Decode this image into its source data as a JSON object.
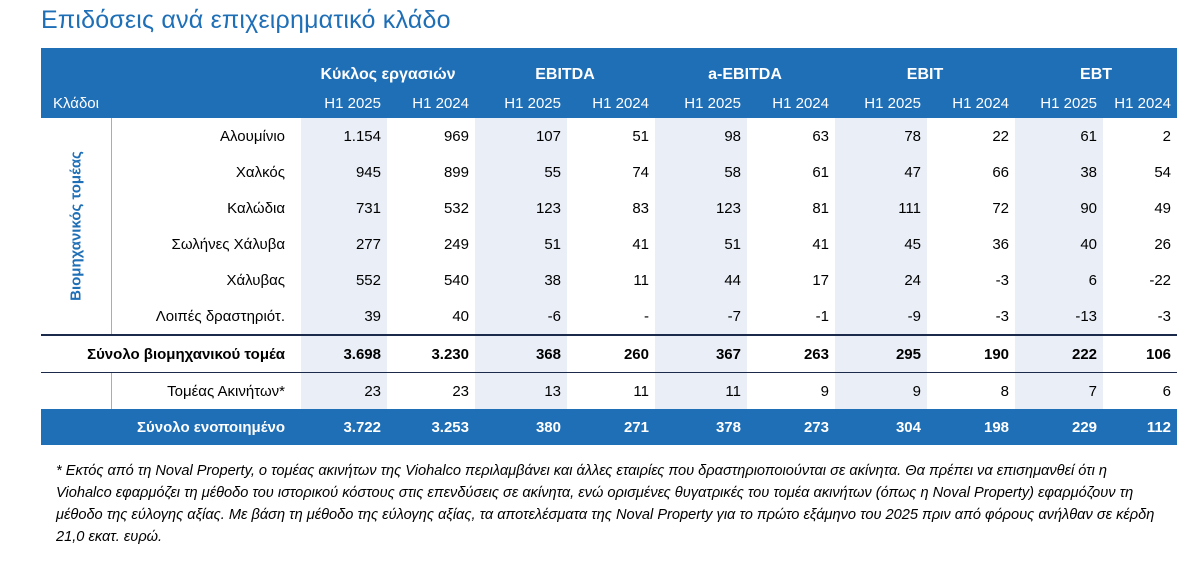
{
  "title": "Επιδόσεις ανά επιχειρηματικό κλάδο",
  "header": {
    "row_label": "Κλάδοι",
    "groups": [
      "Κύκλος εργασιών",
      "EBITDA",
      "a-EBITDA",
      "EBIT",
      "EBT"
    ],
    "periods": [
      "H1 2025",
      "H1 2024"
    ]
  },
  "section_label": "Βιομηχανικός τομέας",
  "rows": [
    {
      "name": "Αλουμίνιο",
      "values": [
        "1.154",
        "969",
        "107",
        "51",
        "98",
        "63",
        "78",
        "22",
        "61",
        "2"
      ]
    },
    {
      "name": "Χαλκός",
      "values": [
        "945",
        "899",
        "55",
        "74",
        "58",
        "61",
        "47",
        "66",
        "38",
        "54"
      ]
    },
    {
      "name": "Καλώδια",
      "values": [
        "731",
        "532",
        "123",
        "83",
        "123",
        "81",
        "111",
        "72",
        "90",
        "49"
      ]
    },
    {
      "name": "Σωλήνες Χάλυβα",
      "values": [
        "277",
        "249",
        "51",
        "41",
        "51",
        "41",
        "45",
        "36",
        "40",
        "26"
      ]
    },
    {
      "name": "Χάλυβας",
      "values": [
        "552",
        "540",
        "38",
        "11",
        "44",
        "17",
        "24",
        "-3",
        "6",
        "-22"
      ]
    },
    {
      "name": "Λοιπές δραστηριότ.",
      "values": [
        "39",
        "40",
        "-6",
        "-",
        "-7",
        "-1",
        "-9",
        "-3",
        "-13",
        "-3"
      ]
    }
  ],
  "industrial_total": {
    "name": "Σύνολο βιομηχανικού τομέα",
    "values": [
      "3.698",
      "3.230",
      "368",
      "260",
      "367",
      "263",
      "295",
      "190",
      "222",
      "106"
    ]
  },
  "real_estate": {
    "name": "Τομέας Ακινήτων*",
    "values": [
      "23",
      "23",
      "13",
      "11",
      "11",
      "9",
      "9",
      "8",
      "7",
      "6"
    ]
  },
  "consolidated_total": {
    "name": "Σύνολο ενοποιημένο",
    "values": [
      "3.722",
      "3.253",
      "380",
      "271",
      "378",
      "273",
      "304",
      "198",
      "229",
      "112"
    ]
  },
  "footnote": "* Εκτός από τη Noval Property, ο τομέας ακινήτων της Viohalco περιλαμβάνει και άλλες εταιρίες που δραστηριοποιούνται σε ακίνητα. Θα πρέπει να επισημανθεί ότι η Viohalco εφαρμόζει τη μέθοδο του ιστορικού κόστους στις επενδύσεις σε ακίνητα, ενώ ορισμένες θυγατρικές του τομέα ακινήτων (όπως η Noval Property) εφαρμόζουν τη μέθοδο της εύλογης αξίας. Με βάση τη μέθοδο της εύλογης αξίας, τα αποτελέσματα της Noval Property για το πρώτο εξάμηνο του 2025 πριν από φόρους ανήλθαν σε κέρδη 21,0 εκατ. ευρώ.",
  "colors": {
    "accent": "#1f6fb7",
    "shade": "#e9eef7"
  }
}
